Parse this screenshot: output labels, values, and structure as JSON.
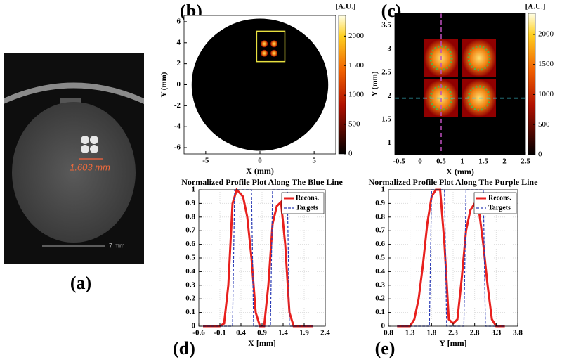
{
  "chart_data": [
    {
      "type": "image",
      "label": "(a)",
      "annotation": "1.603 mm",
      "scale_label": "7 mm"
    },
    {
      "type": "heatmap",
      "label": "(b)",
      "xlabel": "X (mm)",
      "ylabel": "Y (mm)",
      "colorbar_label": "[A.U.]",
      "xlim": [
        -7,
        7
      ],
      "xticks": [
        -5,
        0,
        5
      ],
      "ylim": [
        -6.6,
        6.6
      ],
      "yticks": [
        -6,
        -4,
        -2,
        0,
        2,
        4,
        6
      ],
      "clim": [
        0,
        2350
      ],
      "cticks": [
        0,
        500,
        1000,
        1500,
        2000
      ]
    },
    {
      "type": "heatmap",
      "label": "(c)",
      "xlabel": "X (mm)",
      "ylabel": "Y (mm)",
      "colorbar_label": "[A.U.]",
      "xlim": [
        -0.6,
        2.5
      ],
      "xticks": [
        -0.5,
        0,
        0.5,
        1,
        1.5,
        2,
        2.5
      ],
      "ylim": [
        0.75,
        3.75
      ],
      "yticks": [
        1,
        1.5,
        2,
        2.5,
        3,
        3.5
      ],
      "clim": [
        0,
        2350
      ],
      "cticks": [
        0,
        500,
        1000,
        1500,
        2000
      ]
    },
    {
      "type": "line",
      "label": "(d)",
      "title": "Normalized Profile Plot Along The Blue Line",
      "xlabel": "X [mm]",
      "xlim": [
        -0.6,
        2.4
      ],
      "xticks": [
        -0.6,
        -0.1,
        0.4,
        0.9,
        1.4,
        1.9,
        2.4
      ],
      "ylim": [
        0,
        1
      ],
      "yticks": [
        0,
        0.1,
        0.2,
        0.3,
        0.4,
        0.5,
        0.6,
        0.7,
        0.8,
        0.9,
        1
      ],
      "grid": true,
      "legend": "upper-right",
      "series": [
        {
          "name": "Recons.",
          "color": "#e8201e",
          "x": [
            -0.5,
            -0.1,
            0,
            0.1,
            0.2,
            0.3,
            0.45,
            0.55,
            0.65,
            0.75,
            0.85,
            0.95,
            1.05,
            1.15,
            1.25,
            1.35,
            1.45,
            1.55,
            1.65,
            2.1
          ],
          "values": [
            0,
            0,
            0.02,
            0.3,
            0.9,
            1.0,
            0.95,
            0.8,
            0.5,
            0.1,
            0.0,
            0.0,
            0.3,
            0.75,
            0.88,
            0.91,
            0.6,
            0.1,
            0.0,
            0
          ]
        },
        {
          "name": "Targets",
          "color": "#2a3bb5",
          "x": [
            -0.5,
            0.2,
            0.25,
            0.65,
            0.7,
            1.1,
            1.15,
            1.5,
            1.55,
            2.1
          ],
          "values": [
            0,
            0,
            1,
            1,
            0,
            0,
            1,
            1,
            0,
            0
          ]
        }
      ]
    },
    {
      "type": "line",
      "label": "(e)",
      "title": "Normalized Profile Plot Along The Purple Line",
      "xlabel": "Y [mm]",
      "xlim": [
        0.8,
        3.8
      ],
      "xticks": [
        0.8,
        1.3,
        1.8,
        2.3,
        2.8,
        3.3,
        3.8
      ],
      "ylim": [
        0,
        1
      ],
      "yticks": [
        0,
        0.1,
        0.2,
        0.3,
        0.4,
        0.5,
        0.6,
        0.7,
        0.8,
        0.9,
        1
      ],
      "grid": true,
      "legend": "upper-right",
      "series": [
        {
          "name": "Recons.",
          "color": "#e8201e",
          "x": [
            1.0,
            1.3,
            1.4,
            1.5,
            1.6,
            1.7,
            1.8,
            1.9,
            2.0,
            2.1,
            2.2,
            2.3,
            2.4,
            2.5,
            2.6,
            2.7,
            2.8,
            2.9,
            3.0,
            3.1,
            3.2,
            3.3,
            3.5
          ],
          "values": [
            0,
            0,
            0.05,
            0.2,
            0.45,
            0.75,
            0.95,
            1.0,
            1.0,
            0.6,
            0.05,
            0.02,
            0.05,
            0.35,
            0.7,
            0.85,
            0.9,
            0.85,
            0.6,
            0.3,
            0.05,
            0,
            0
          ]
        },
        {
          "name": "Targets",
          "color": "#2a3bb5",
          "x": [
            1.0,
            1.75,
            1.8,
            2.1,
            2.15,
            2.55,
            2.6,
            3.0,
            3.05,
            3.5
          ],
          "values": [
            0,
            0,
            1,
            1,
            0,
            0,
            1,
            1,
            0,
            0
          ]
        }
      ]
    }
  ]
}
